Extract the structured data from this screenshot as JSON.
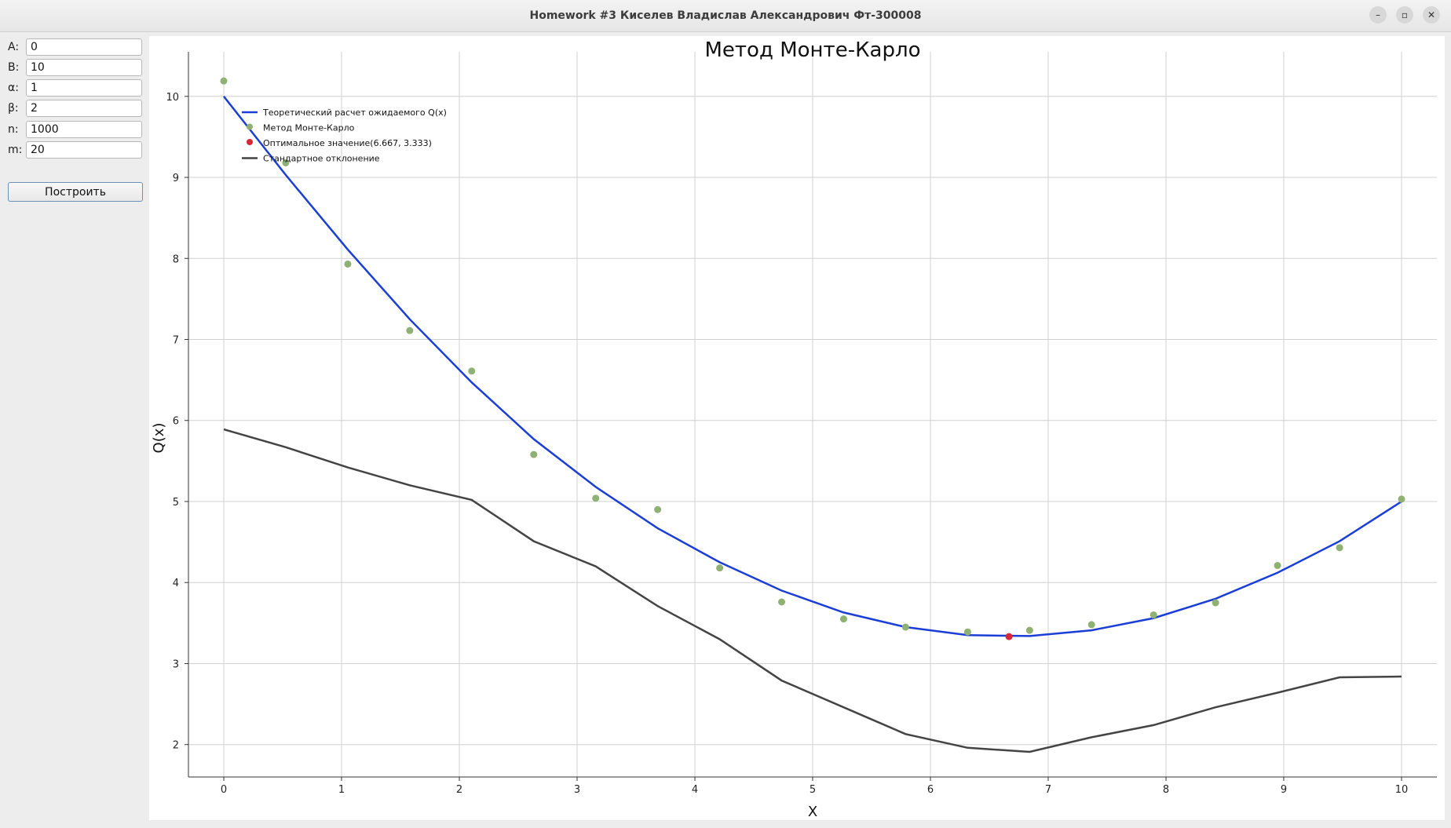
{
  "window": {
    "title": "Homework #3 Киселев Владислав Александрович Фт-300008",
    "minimize_icon": "minimize-icon",
    "maximize_icon": "maximize-icon",
    "close_icon": "close-icon"
  },
  "form": {
    "fields": [
      {
        "label": "A:",
        "value": "0"
      },
      {
        "label": "B:",
        "value": "10"
      },
      {
        "label": "α:",
        "value": "1"
      },
      {
        "label": "β:",
        "value": "2"
      },
      {
        "label": "n:",
        "value": "1000"
      },
      {
        "label": "m:",
        "value": "20"
      }
    ],
    "build_button": "Построить"
  },
  "colors": {
    "theory": "#1a3ed6",
    "monte_carlo": "#8fb174",
    "optimum": "#d62839",
    "stddev": "#444444",
    "grid": "#d0d0d0"
  },
  "chart_data": {
    "type": "line",
    "title": "Метод Монте-Карло",
    "xlabel": "X",
    "ylabel": "Q(x)",
    "xlim": [
      -0.3,
      10.3
    ],
    "ylim": [
      1.6,
      10.55
    ],
    "x_ticks": [
      "0",
      "1",
      "2",
      "3",
      "4",
      "5",
      "6",
      "7",
      "8",
      "9",
      "10"
    ],
    "y_ticks": [
      "2",
      "3",
      "4",
      "5",
      "6",
      "7",
      "8",
      "9",
      "10"
    ],
    "grid": true,
    "legend_position": "top-left",
    "legend": [
      {
        "label": "Теоретический расчет ожидаемого Q(x)",
        "kind": "line",
        "series": "theory"
      },
      {
        "label": "Метод Монте-Карло",
        "kind": "dot",
        "series": "monte_carlo"
      },
      {
        "label": "Оптимальное значение(6.667, 3.333)",
        "kind": "dot",
        "series": "optimum"
      },
      {
        "label": "Стандартное отклонение",
        "kind": "line",
        "series": "stddev"
      }
    ],
    "x": [
      0,
      0.526,
      1.053,
      1.579,
      2.105,
      2.632,
      3.158,
      3.684,
      4.211,
      4.737,
      5.263,
      5.789,
      6.316,
      6.842,
      7.368,
      7.895,
      8.421,
      8.947,
      9.474,
      10.0
    ],
    "series": [
      {
        "name": "Теоретический расчет ожидаемого Q(x)",
        "values": [
          10.0,
          9.03,
          8.11,
          7.25,
          6.47,
          5.77,
          5.18,
          4.67,
          4.25,
          3.9,
          3.63,
          3.45,
          3.35,
          3.34,
          3.41,
          3.56,
          3.8,
          4.12,
          4.51,
          5.0
        ]
      },
      {
        "name": "Метод Монте-Карло",
        "values": [
          10.19,
          9.18,
          7.93,
          7.11,
          6.61,
          5.58,
          5.04,
          4.9,
          4.18,
          3.76,
          3.55,
          3.45,
          3.39,
          3.41,
          3.48,
          3.6,
          3.75,
          4.21,
          4.43,
          5.03
        ]
      },
      {
        "name": "Стандартное отклонение",
        "values": [
          5.89,
          5.67,
          5.42,
          5.2,
          5.02,
          4.51,
          4.2,
          3.71,
          3.3,
          2.79,
          2.46,
          2.13,
          1.96,
          1.91,
          2.09,
          2.24,
          2.46,
          2.64,
          2.83,
          2.84
        ]
      }
    ],
    "optimum": {
      "x": 6.667,
      "y": 3.333
    }
  }
}
